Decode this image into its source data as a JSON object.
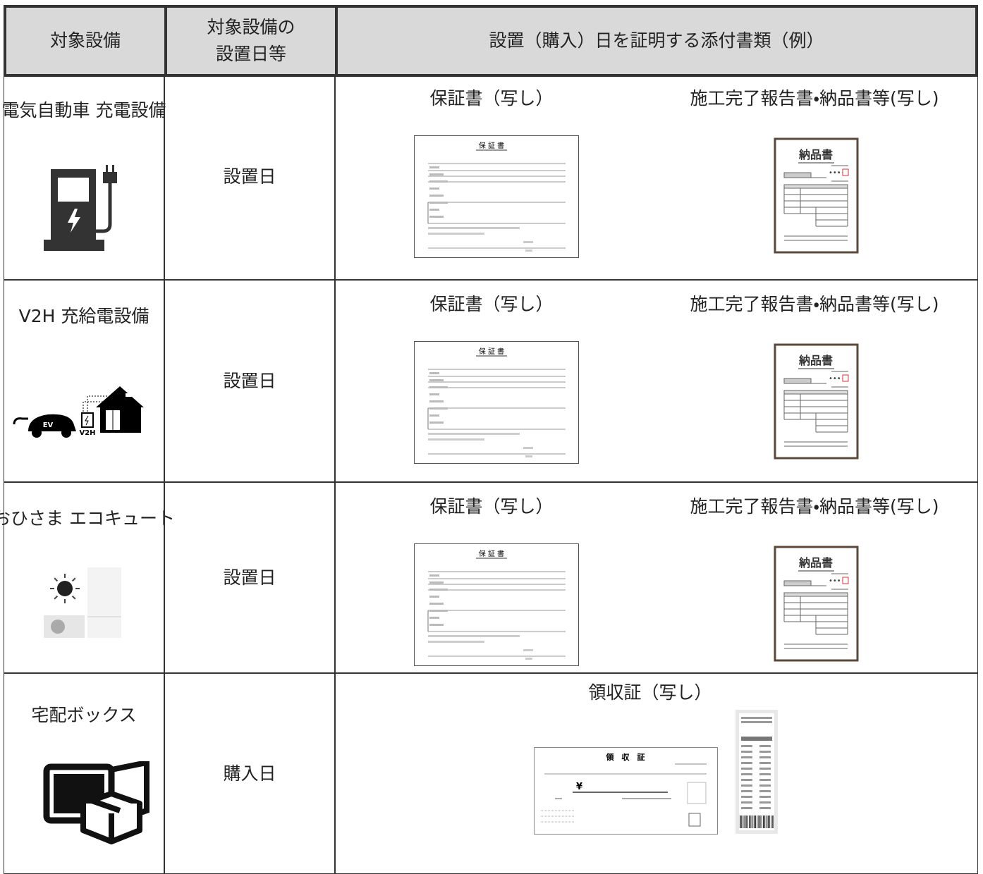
{
  "table": {
    "header": [
      "対象設備",
      "対象設備の\n設置日等",
      "設置（購入）日を証明する添付書類（例）"
    ],
    "rows": [
      {
        "equipment": "電気自動車\n充電設備",
        "date": "設置日",
        "documents": [
          {
            "label": "保証書（写し）",
            "warranty_title": "保 証 書"
          },
          {
            "label": "施工完了報告書・納品書等(写し)",
            "invoice_title": "納品書"
          }
        ]
      },
      {
        "equipment": "V2H\n充給電設備",
        "icon_texts": [
          "EV",
          "V2H"
        ],
        "date": "設置日",
        "documents": [
          {
            "label": "保証書（写し）",
            "warranty_title": "保 証 書"
          },
          {
            "label": "施工完了報告書・納品書等(写し)",
            "invoice_title": "納品書"
          }
        ]
      },
      {
        "equipment": "おひさま\nエコキュート",
        "date": "設置日",
        "documents": [
          {
            "label": "保証書（写し）",
            "warranty_title": "保 証 書"
          },
          {
            "label": "施工完了報告書・納品書等(写し)",
            "invoice_title": "納品書"
          }
        ]
      },
      {
        "equipment": "宅配ボックス",
        "date": "購入日",
        "documents": [
          {
            "label": "領収証（写し）",
            "receipt_title": "領　収　証",
            "receipt_currency": "¥"
          }
        ]
      }
    ]
  }
}
